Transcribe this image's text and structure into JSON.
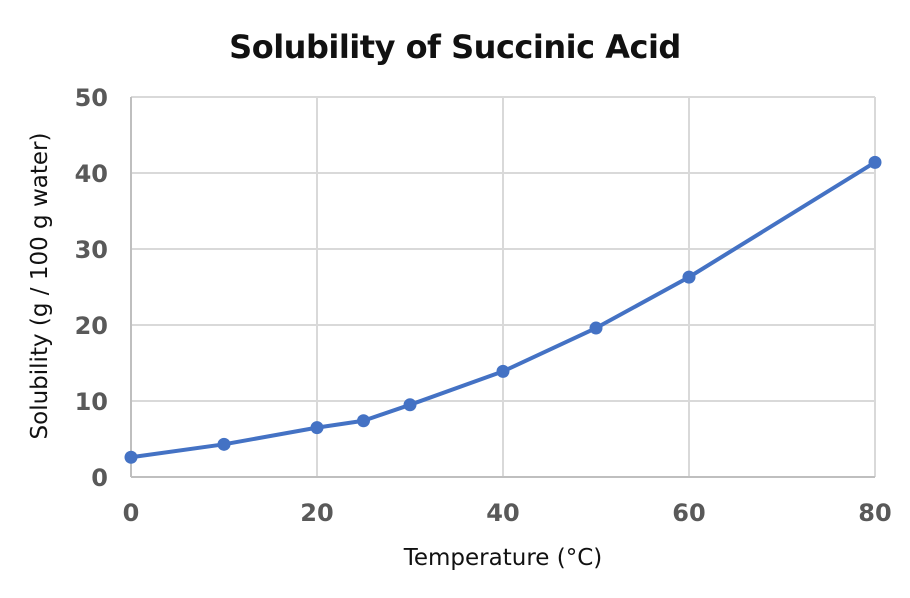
{
  "chart_data": {
    "type": "line",
    "title": "Solubility of Succinic Acid",
    "xlabel": "Temperature (°C)",
    "ylabel": "Solubility (g / 100 g water)",
    "x": [
      0,
      10,
      20,
      25,
      30,
      40,
      50,
      60,
      80
    ],
    "series": [
      {
        "name": "Solubility",
        "values": [
          2.6,
          4.3,
          6.5,
          7.4,
          9.5,
          13.9,
          19.6,
          26.3,
          41.4
        ],
        "color": "#4472C4"
      }
    ],
    "xlim": [
      0,
      80
    ],
    "ylim": [
      0,
      50
    ],
    "xticks": [
      0,
      20,
      40,
      60,
      80
    ],
    "yticks": [
      0,
      10,
      20,
      30,
      40,
      50
    ],
    "grid": true,
    "legend": null
  }
}
